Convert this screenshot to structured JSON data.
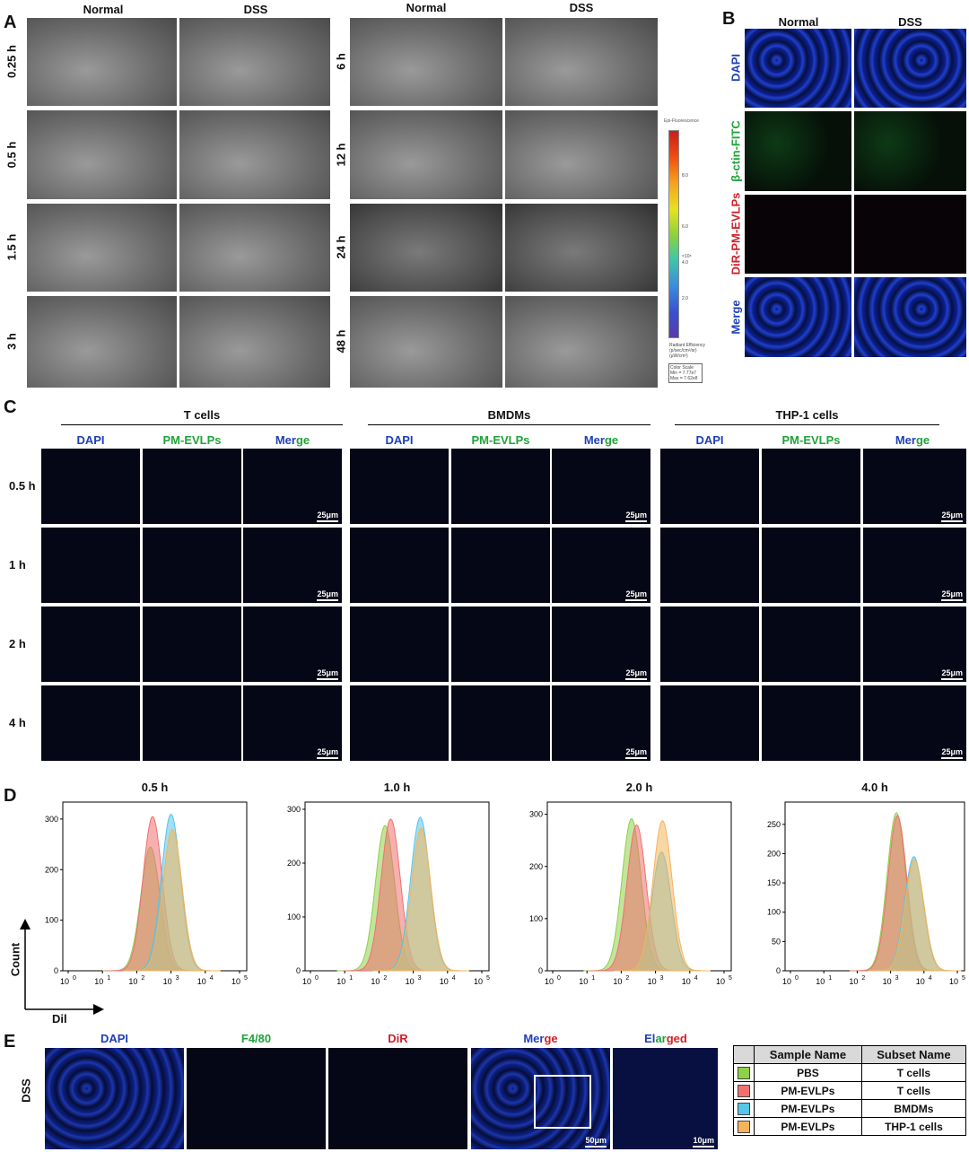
{
  "panels": {
    "A": "A",
    "B": "B",
    "C": "C",
    "D": "D",
    "E": "E"
  },
  "panelA": {
    "left_headers": [
      "Normal",
      "DSS"
    ],
    "right_headers": [
      "Normal",
      "DSS"
    ],
    "left_times": [
      "0.25 h",
      "0.5 h",
      "1.5 h",
      "3 h"
    ],
    "right_times": [
      "6 h",
      "12 h",
      "24 h",
      "48 h"
    ],
    "colorbar": {
      "title": "Epi-Fluorescence",
      "ticks": [
        "8.0",
        "6.0",
        "4.0",
        "2.0"
      ],
      "exponent": "×10⁸",
      "unit_line1": "Radiant Efficiency",
      "unit_line2": "(p/sec/cm²/sr)",
      "unit_line3": "(μW/cm²)",
      "scale_title": "Color Scale",
      "min": "Min = 7.77e7",
      "max": "Max = 7.62e8"
    }
  },
  "panelB": {
    "headers": [
      "Normal",
      "DSS"
    ],
    "rows": [
      {
        "label": "DAPI",
        "color": "#1f3fb8"
      },
      {
        "label": "β-ctin-FITC",
        "color": "#1fa33a"
      },
      {
        "label": "DiR-PM-EVLPs",
        "color": "#d0202a"
      },
      {
        "label": "Merge",
        "color": "#1f3fb8"
      }
    ]
  },
  "panelC": {
    "groups": [
      "T cells",
      "BMDMs",
      "THP-1 cells"
    ],
    "channels": [
      "DAPI",
      "PM-EVLPs",
      "Merge"
    ],
    "merge_parts": [
      "Mer",
      "ge"
    ],
    "times": [
      "0.5 h",
      "1 h",
      "2 h",
      "4 h"
    ],
    "scale": "25μm"
  },
  "panelD": {
    "ylabel": "Count",
    "xlabel": "Dil",
    "charts": [
      {
        "title": "0.5 h",
        "yticks": [
          0,
          100,
          200,
          300
        ],
        "ymax": 330
      },
      {
        "title": "1.0 h",
        "yticks": [
          0,
          100,
          200,
          300
        ],
        "ymax": 310
      },
      {
        "title": "2.0 h",
        "yticks": [
          0,
          100,
          200,
          300
        ],
        "ymax": 320
      },
      {
        "title": "4.0 h",
        "yticks": [
          0,
          50,
          100,
          150,
          200,
          250
        ],
        "ymax": 285
      }
    ],
    "xtick_base": "10",
    "xtick_exps": [
      "0",
      "1",
      "2",
      "3",
      "4",
      "5"
    ]
  },
  "chart_data": [
    {
      "type": "area",
      "title": "0.5 h",
      "xlabel": "Dil",
      "ylabel": "Count",
      "x_scale": "log",
      "xlim": [
        1,
        100000
      ],
      "ylim": [
        0,
        330
      ],
      "series": [
        {
          "name": "PBS / T cells",
          "color": "#8fcf4a",
          "peak_x": 250,
          "peak_y": 245
        },
        {
          "name": "PM-EVLPs / T cells",
          "color": "#f07070",
          "peak_x": 290,
          "peak_y": 305
        },
        {
          "name": "PM-EVLPs / BMDMs",
          "color": "#55c5e8",
          "peak_x": 1000,
          "peak_y": 310
        },
        {
          "name": "PM-EVLPs / THP-1 cells",
          "color": "#f5b45a",
          "peak_x": 1100,
          "peak_y": 280
        }
      ]
    },
    {
      "type": "area",
      "title": "1.0 h",
      "xlabel": "Dil",
      "ylabel": "Count",
      "x_scale": "log",
      "xlim": [
        1,
        100000
      ],
      "ylim": [
        0,
        310
      ],
      "series": [
        {
          "name": "PBS / T cells",
          "color": "#8fcf4a",
          "peak_x": 150,
          "peak_y": 270
        },
        {
          "name": "PM-EVLPs / T cells",
          "color": "#f07070",
          "peak_x": 220,
          "peak_y": 282
        },
        {
          "name": "PM-EVLPs / BMDMs",
          "color": "#55c5e8",
          "peak_x": 1600,
          "peak_y": 285
        },
        {
          "name": "PM-EVLPs / THP-1 cells",
          "color": "#f5b45a",
          "peak_x": 1700,
          "peak_y": 265
        }
      ]
    },
    {
      "type": "area",
      "title": "2.0 h",
      "xlabel": "Dil",
      "ylabel": "Count",
      "x_scale": "log",
      "xlim": [
        1,
        100000
      ],
      "ylim": [
        0,
        320
      ],
      "series": [
        {
          "name": "PBS / T cells",
          "color": "#8fcf4a",
          "peak_x": 200,
          "peak_y": 292
        },
        {
          "name": "PM-EVLPs / T cells",
          "color": "#f07070",
          "peak_x": 280,
          "peak_y": 280
        },
        {
          "name": "PM-EVLPs / BMDMs",
          "color": "#55c5e8",
          "peak_x": 1500,
          "peak_y": 228
        },
        {
          "name": "PM-EVLPs / THP-1 cells",
          "color": "#f5b45a",
          "peak_x": 1600,
          "peak_y": 288
        }
      ]
    },
    {
      "type": "area",
      "title": "4.0 h",
      "xlabel": "Dil",
      "ylabel": "Count",
      "x_scale": "log",
      "xlim": [
        1,
        100000
      ],
      "ylim": [
        0,
        285
      ],
      "series": [
        {
          "name": "PBS / T cells",
          "color": "#8fcf4a",
          "peak_x": 1500,
          "peak_y": 270
        },
        {
          "name": "PM-EVLPs / T cells",
          "color": "#f07070",
          "peak_x": 1600,
          "peak_y": 265
        },
        {
          "name": "PM-EVLPs / BMDMs",
          "color": "#55c5e8",
          "peak_x": 5000,
          "peak_y": 195
        },
        {
          "name": "PM-EVLPs / THP-1 cells",
          "color": "#f5b45a",
          "peak_x": 5200,
          "peak_y": 190
        }
      ]
    }
  ],
  "panelE": {
    "row_label": "DSS",
    "headers": [
      {
        "text": "DAPI",
        "color": "#1f3fb8"
      },
      {
        "text": "F4/80",
        "color": "#1fa33a"
      },
      {
        "text": "DiR",
        "color": "#d0202a"
      }
    ],
    "merge_parts": [
      "Mer",
      "ge"
    ],
    "enlarged_parts": [
      "El",
      "ar",
      "ged"
    ],
    "scale_left": "50μm",
    "scale_right": "10μm"
  },
  "legend": {
    "col1": "Sample Name",
    "col2": "Subset Name",
    "rows": [
      {
        "sample": "PBS",
        "subset": "T cells",
        "color": "#8fcf4a"
      },
      {
        "sample": "PM-EVLPs",
        "subset": "T cells",
        "color": "#f07070"
      },
      {
        "sample": "PM-EVLPs",
        "subset": "BMDMs",
        "color": "#55c5e8"
      },
      {
        "sample": "PM-EVLPs",
        "subset": "THP-1 cells",
        "color": "#f5b45a"
      }
    ]
  }
}
